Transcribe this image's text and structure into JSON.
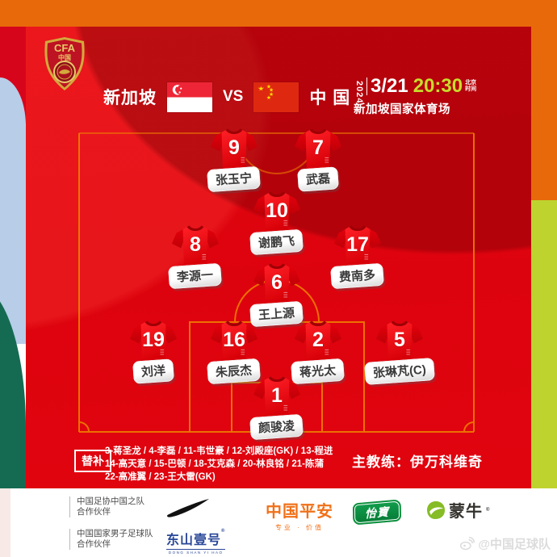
{
  "colors": {
    "frame_orange": "#E8690A",
    "frame_lime": "#BFD32F",
    "frame_blue": "#B7CDE8",
    "frame_green": "#156B52",
    "card_red": "#E1040F",
    "pitch_line": "#F08300",
    "time_green": "#C8DC2B",
    "jersey_red": "#EC0410",
    "pingan_orange": "#F07119",
    "yibao_green": "#0B8F3C",
    "mengniu_green": "#86BC25",
    "dongshan_blue": "#2A4798"
  },
  "badge": {
    "acronym": "CFA",
    "country": "中国"
  },
  "header": {
    "home_team": "新加坡",
    "vs_label": "VS",
    "away_team": "中 国",
    "year": "2024",
    "date": "3/21",
    "time": "20:30",
    "time_zone": "北京时间",
    "venue": "新加坡国家体育场"
  },
  "lineup": {
    "players": [
      {
        "number": "9",
        "name": "张玉宁"
      },
      {
        "number": "7",
        "name": "武磊"
      },
      {
        "number": "10",
        "name": "谢鹏飞"
      },
      {
        "number": "8",
        "name": "李源一"
      },
      {
        "number": "17",
        "name": "费南多"
      },
      {
        "number": "6",
        "name": "王上源"
      },
      {
        "number": "19",
        "name": "刘洋"
      },
      {
        "number": "16",
        "name": "朱辰杰"
      },
      {
        "number": "2",
        "name": "蒋光太"
      },
      {
        "number": "5",
        "name": "张琳芃(C)"
      },
      {
        "number": "1",
        "name": "颜骏凌"
      }
    ]
  },
  "substitutes": {
    "label": "替补",
    "lines": [
      "3-蒋圣龙 / 4-李磊 / 11-韦世豪 / 12-刘殿座(GK) / 13-程进",
      "14-高天意 / 15-巴顿 / 18-艾克森 / 20-林良铭 / 21-陈蒲",
      "22-高准翼 / 23-王大雷(GK)"
    ]
  },
  "coach_line": "主教练：伊万科维奇",
  "footer": {
    "reg": "®",
    "partners": [
      {
        "line1": "中国足协中国之队",
        "line2": "合作伙伴"
      },
      {
        "line1": "中国国家男子足球队",
        "line2": "合作伙伴"
      }
    ],
    "dongshan": {
      "name": "东山壹号",
      "romanized": "DONG SHAN YI HAO"
    },
    "pingan": {
      "name": "中国平安",
      "tagline": "专业 · 价值"
    },
    "yibao": {
      "name": "怡寶"
    },
    "mengniu": {
      "name": "蒙牛"
    }
  },
  "watermark": {
    "handle": "@中国足球队"
  }
}
